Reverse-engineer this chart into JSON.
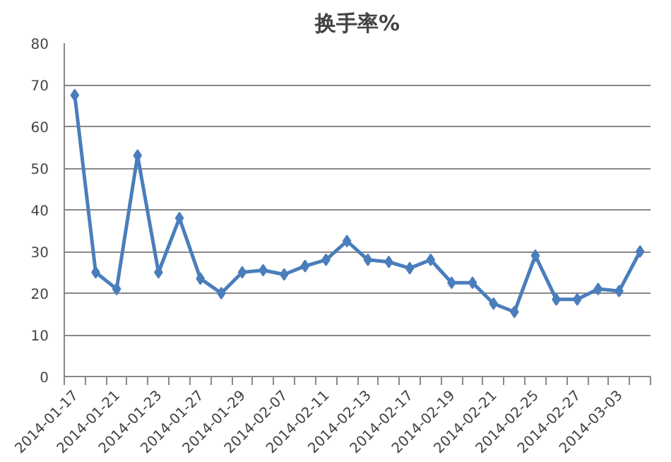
{
  "chart_data": {
    "type": "line",
    "title": "换手率%",
    "categories": [
      "2014-01-17",
      null,
      "2014-01-21",
      null,
      "2014-01-23",
      null,
      "2014-01-27",
      null,
      "2014-01-29",
      null,
      "2014-02-07",
      null,
      "2014-02-11",
      null,
      "2014-02-13",
      null,
      "2014-02-17",
      null,
      "2014-02-19",
      null,
      "2014-02-21",
      null,
      "2014-02-25",
      null,
      "2014-02-27",
      null,
      "2014-03-03",
      null
    ],
    "series": [
      {
        "color": "#4a7ebb",
        "values": [
          67.5,
          25,
          21,
          53,
          25,
          38,
          23.5,
          20,
          25,
          25.5,
          24.5,
          26.5,
          28,
          32.5,
          28,
          27.5,
          26,
          28,
          22.5,
          22.5,
          17.5,
          15.5,
          29,
          18.5,
          18.5,
          21,
          20.5,
          30
        ]
      }
    ],
    "ylim": [
      0,
      80
    ],
    "yticks": [
      0,
      10,
      20,
      30,
      40,
      50,
      60,
      70,
      80
    ],
    "grid": "y",
    "marker": "diamond",
    "line_style": "solid"
  }
}
